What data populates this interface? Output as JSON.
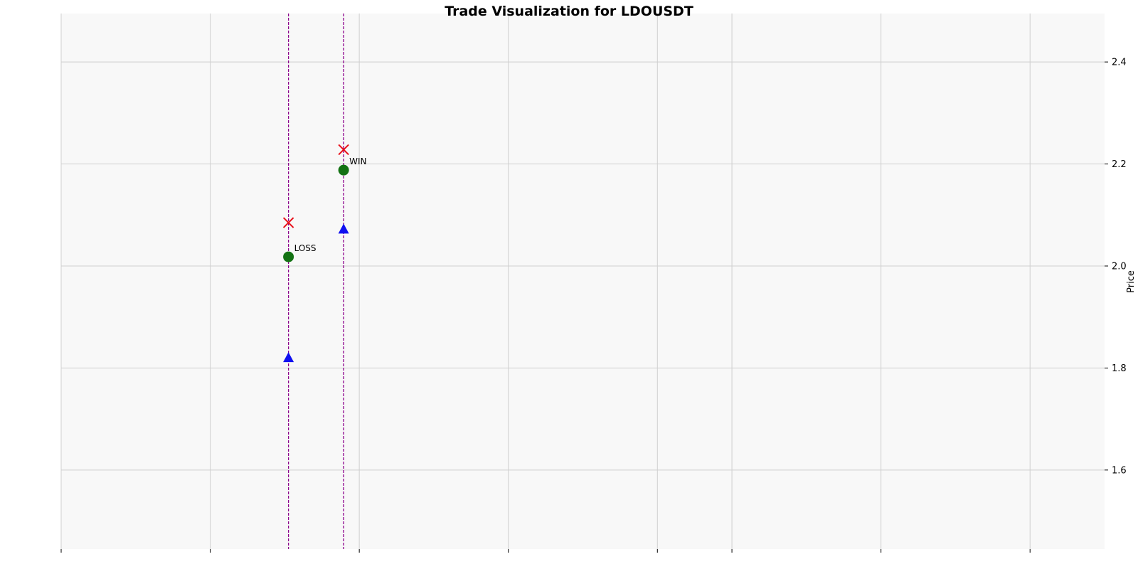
{
  "chart_data": {
    "type": "scatter",
    "title": "Trade Visualization for LDOUSDT",
    "xlabel": "",
    "ylabel": "Price",
    "ylim": [
      1.445,
      2.495
    ],
    "xlim": [
      0,
      7
    ],
    "yticks": [
      1.6,
      1.8,
      2.0,
      2.2,
      2.4
    ],
    "ytick_labels": [
      "1.6",
      "1.8",
      "2.0",
      "2.2",
      "2.4"
    ],
    "xticks": [
      0,
      1,
      2,
      3,
      4,
      4.5,
      5.5,
      6.5
    ],
    "grid": true,
    "y_axis_side": "right",
    "trades": [
      {
        "x": 1.525,
        "entry": 2.018,
        "stop": 1.82,
        "target": 2.085,
        "result": "LOSS"
      },
      {
        "x": 1.895,
        "entry": 2.188,
        "stop": 2.072,
        "target": 2.228,
        "result": "WIN"
      }
    ],
    "marker_colors": {
      "entry": "#137213",
      "stop": "#1010f0",
      "target": "#e8101a",
      "trade_line": "#8b008b"
    },
    "background": "#f8f8f8",
    "grid_color": "#cfcfcf"
  }
}
